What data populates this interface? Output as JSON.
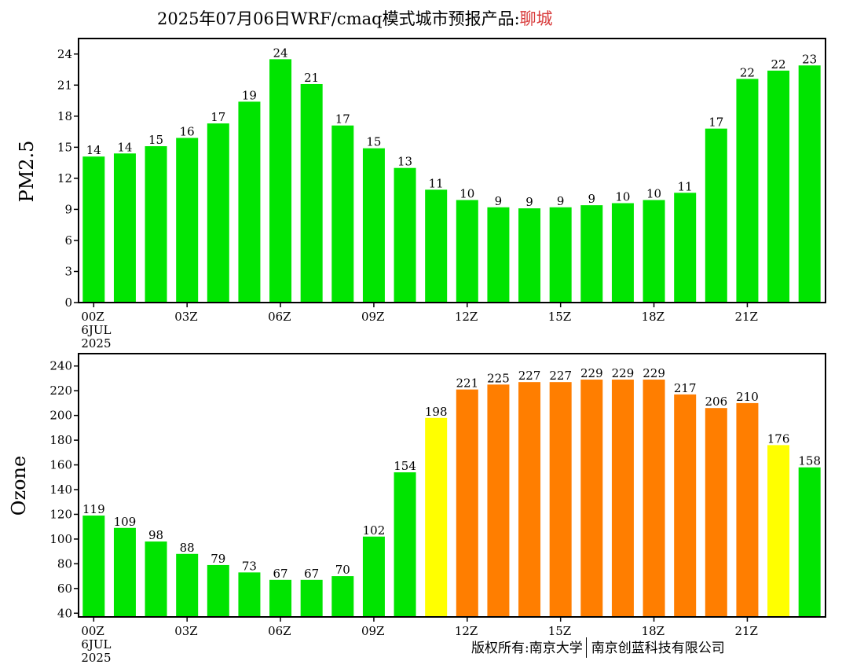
{
  "header": {
    "title_main": "2025年07月06日WRF/cmaq模式城市预报产品:",
    "city": "聊城"
  },
  "footer": {
    "left": "版权所有:南京大学",
    "right": "南京创蓝科技有限公司"
  },
  "colors": {
    "good": "#00e400",
    "moderate": "#ffff00",
    "unhealthy_sensitive": "#ff7e00"
  },
  "chart_data": [
    {
      "type": "bar",
      "ylabel": "PM2.5",
      "ylim": [
        0,
        25.5
      ],
      "yticks": [
        0,
        3,
        6,
        9,
        12,
        15,
        18,
        21,
        24
      ],
      "grid": false,
      "x_tick_labels": [
        {
          "index": 0,
          "lines": [
            "00Z",
            "6JUL",
            "2025"
          ]
        },
        {
          "index": 3,
          "lines": [
            "03Z"
          ]
        },
        {
          "index": 6,
          "lines": [
            "06Z"
          ]
        },
        {
          "index": 9,
          "lines": [
            "09Z"
          ]
        },
        {
          "index": 12,
          "lines": [
            "12Z"
          ]
        },
        {
          "index": 15,
          "lines": [
            "15Z"
          ]
        },
        {
          "index": 18,
          "lines": [
            "18Z"
          ]
        },
        {
          "index": 21,
          "lines": [
            "21Z"
          ]
        }
      ],
      "values": [
        14.1,
        14.4,
        15.1,
        15.9,
        17.3,
        19.4,
        23.5,
        21.1,
        17.1,
        14.9,
        13.0,
        10.9,
        9.9,
        9.2,
        9.1,
        9.2,
        9.4,
        9.6,
        9.9,
        10.6,
        16.8,
        21.6,
        22.4,
        22.9
      ],
      "labels": [
        "14",
        "14",
        "15",
        "16",
        "17",
        "19",
        "24",
        "21",
        "17",
        "15",
        "13",
        "11",
        "10",
        "9",
        "9",
        "9",
        "9",
        "10",
        "10",
        "11",
        "17",
        "22",
        "22",
        "23"
      ],
      "bar_colors": [
        "good",
        "good",
        "good",
        "good",
        "good",
        "good",
        "good",
        "good",
        "good",
        "good",
        "good",
        "good",
        "good",
        "good",
        "good",
        "good",
        "good",
        "good",
        "good",
        "good",
        "good",
        "good",
        "good",
        "good"
      ]
    },
    {
      "type": "bar",
      "ylabel": "Ozone",
      "ylim": [
        37,
        250
      ],
      "yticks": [
        40,
        60,
        80,
        100,
        120,
        140,
        160,
        180,
        200,
        220,
        240
      ],
      "grid": false,
      "x_tick_labels": [
        {
          "index": 0,
          "lines": [
            "00Z",
            "6JUL",
            "2025"
          ]
        },
        {
          "index": 3,
          "lines": [
            "03Z"
          ]
        },
        {
          "index": 6,
          "lines": [
            "06Z"
          ]
        },
        {
          "index": 9,
          "lines": [
            "09Z"
          ]
        },
        {
          "index": 12,
          "lines": [
            "12Z"
          ]
        },
        {
          "index": 15,
          "lines": [
            "15Z"
          ]
        },
        {
          "index": 18,
          "lines": [
            "18Z"
          ]
        },
        {
          "index": 21,
          "lines": [
            "21Z"
          ]
        }
      ],
      "values": [
        119,
        109,
        98,
        88,
        79,
        73,
        67,
        67,
        70,
        102,
        154,
        198,
        221,
        225,
        227,
        227,
        229,
        229,
        229,
        217,
        206,
        210,
        176,
        158
      ],
      "labels": [
        "119",
        "109",
        "98",
        "88",
        "79",
        "73",
        "67",
        "67",
        "70",
        "102",
        "154",
        "198",
        "221",
        "225",
        "227",
        "227",
        "229",
        "229",
        "229",
        "217",
        "206",
        "210",
        "176",
        "158"
      ],
      "bar_colors": [
        "good",
        "good",
        "good",
        "good",
        "good",
        "good",
        "good",
        "good",
        "good",
        "good",
        "good",
        "moderate",
        "unhealthy_sensitive",
        "unhealthy_sensitive",
        "unhealthy_sensitive",
        "unhealthy_sensitive",
        "unhealthy_sensitive",
        "unhealthy_sensitive",
        "unhealthy_sensitive",
        "unhealthy_sensitive",
        "unhealthy_sensitive",
        "unhealthy_sensitive",
        "moderate",
        "good"
      ]
    }
  ]
}
